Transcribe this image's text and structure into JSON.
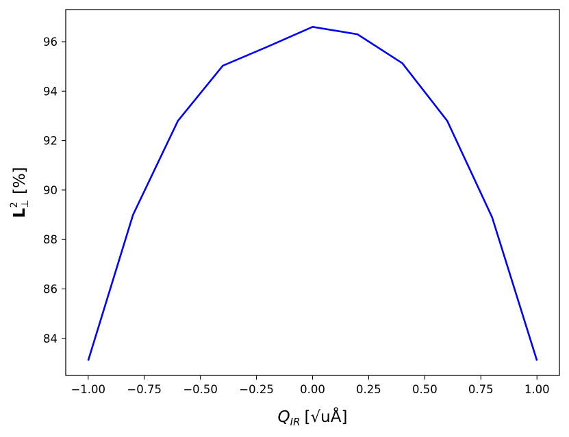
{
  "chart_data": {
    "type": "line",
    "title": "",
    "xlabel": {
      "main": "Q",
      "sub": "IR",
      "units": "[√uÅ]"
    },
    "ylabel": {
      "main": "L",
      "sup": "2",
      "sub": "⊥",
      "units": "[%]"
    },
    "xlim": [
      -1.1,
      1.1
    ],
    "ylim": [
      82.5,
      97.3
    ],
    "xticks": [
      -1.0,
      -0.75,
      -0.5,
      -0.25,
      0.0,
      0.25,
      0.5,
      0.75,
      1.0
    ],
    "xtick_labels": [
      "−1.00",
      "−0.75",
      "−0.50",
      "−0.25",
      "0.00",
      "0.25",
      "0.50",
      "0.75",
      "1.00"
    ],
    "yticks": [
      84,
      86,
      88,
      90,
      92,
      94,
      96
    ],
    "ytick_labels": [
      "84",
      "86",
      "88",
      "90",
      "92",
      "94",
      "96"
    ],
    "grid": false,
    "legend": "none",
    "series": [
      {
        "color": "#0000ff",
        "x": [
          -1.0,
          -0.8,
          -0.6,
          -0.4,
          -0.2,
          0.0,
          0.2,
          0.4,
          0.6,
          0.8,
          1.0
        ],
        "y": [
          83.1,
          89.0,
          92.8,
          95.03,
          95.8,
          96.6,
          96.3,
          95.13,
          92.8,
          88.9,
          83.1
        ]
      }
    ]
  }
}
